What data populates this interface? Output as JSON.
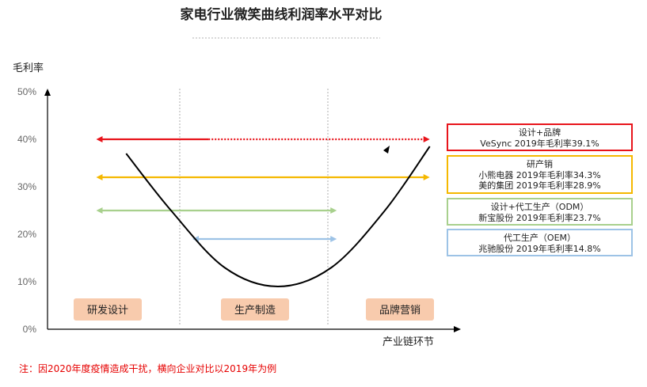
{
  "chart_data": {
    "type": "line",
    "title": "家电行业微笑曲线利润率水平对比",
    "ylabel": "毛利率",
    "xlabel": "产业链环节",
    "ylim": [
      0,
      50
    ],
    "y_ticks": [
      "0%",
      "10%",
      "20%",
      "30%",
      "40%",
      "50%"
    ],
    "regions": [
      "研发设计",
      "生产制造",
      "品牌营销"
    ],
    "smile_curve": {
      "x": [
        0.58,
        1.0,
        1.5,
        2.0,
        2.5,
        3.0,
        3.42
      ],
      "y": [
        37,
        25,
        13,
        9,
        13,
        25,
        38.5
      ]
    },
    "ranges": [
      {
        "category": "设计+品牌",
        "company": "VeSync",
        "margin": 39.1,
        "x_start": 0.3,
        "x_end": 3.5,
        "color": "#e8141b"
      },
      {
        "category": "研产销",
        "company": "小熊电器",
        "margin": 34.3,
        "x_start": 0.3,
        "x_end": 3.5,
        "color": "#f5b800"
      },
      {
        "category": "研产销",
        "company": "美的集团",
        "margin": 28.9,
        "x_start": 0.3,
        "x_end": 3.5,
        "color": "#f5b800"
      },
      {
        "category": "设计+代工生产（ODM）",
        "company": "新宝股份",
        "margin": 23.7,
        "x_start": 0.3,
        "x_end": 2.65,
        "color": "#a8d08d"
      },
      {
        "category": "代工生产（OEM）",
        "company": "兆驰股份",
        "margin": 14.8,
        "x_start": 1.2,
        "x_end": 2.5,
        "color": "#9dc3e6"
      }
    ],
    "arrow_levels": [
      40,
      32,
      25,
      19
    ]
  },
  "legend_boxes": [
    {
      "title": "设计+品牌",
      "lines": [
        "VeSync  2019年毛利率39.1%"
      ],
      "color": "#e8141b"
    },
    {
      "title": "研产销",
      "lines": [
        "小熊电器 2019年毛利率34.3%",
        "美的集团 2019年毛利率28.9%"
      ],
      "color": "#f5b800"
    },
    {
      "title": "设计+代工生产（ODM）",
      "lines": [
        "新宝股份 2019年毛利率23.7%"
      ],
      "color": "#a8d08d"
    },
    {
      "title": "代工生产（OEM）",
      "lines": [
        "兆驰股份 2019年毛利率14.8%"
      ],
      "color": "#9dc3e6"
    }
  ],
  "note": "注：因2020年度疫情造成干扰，横向企业对比以2019年为例"
}
